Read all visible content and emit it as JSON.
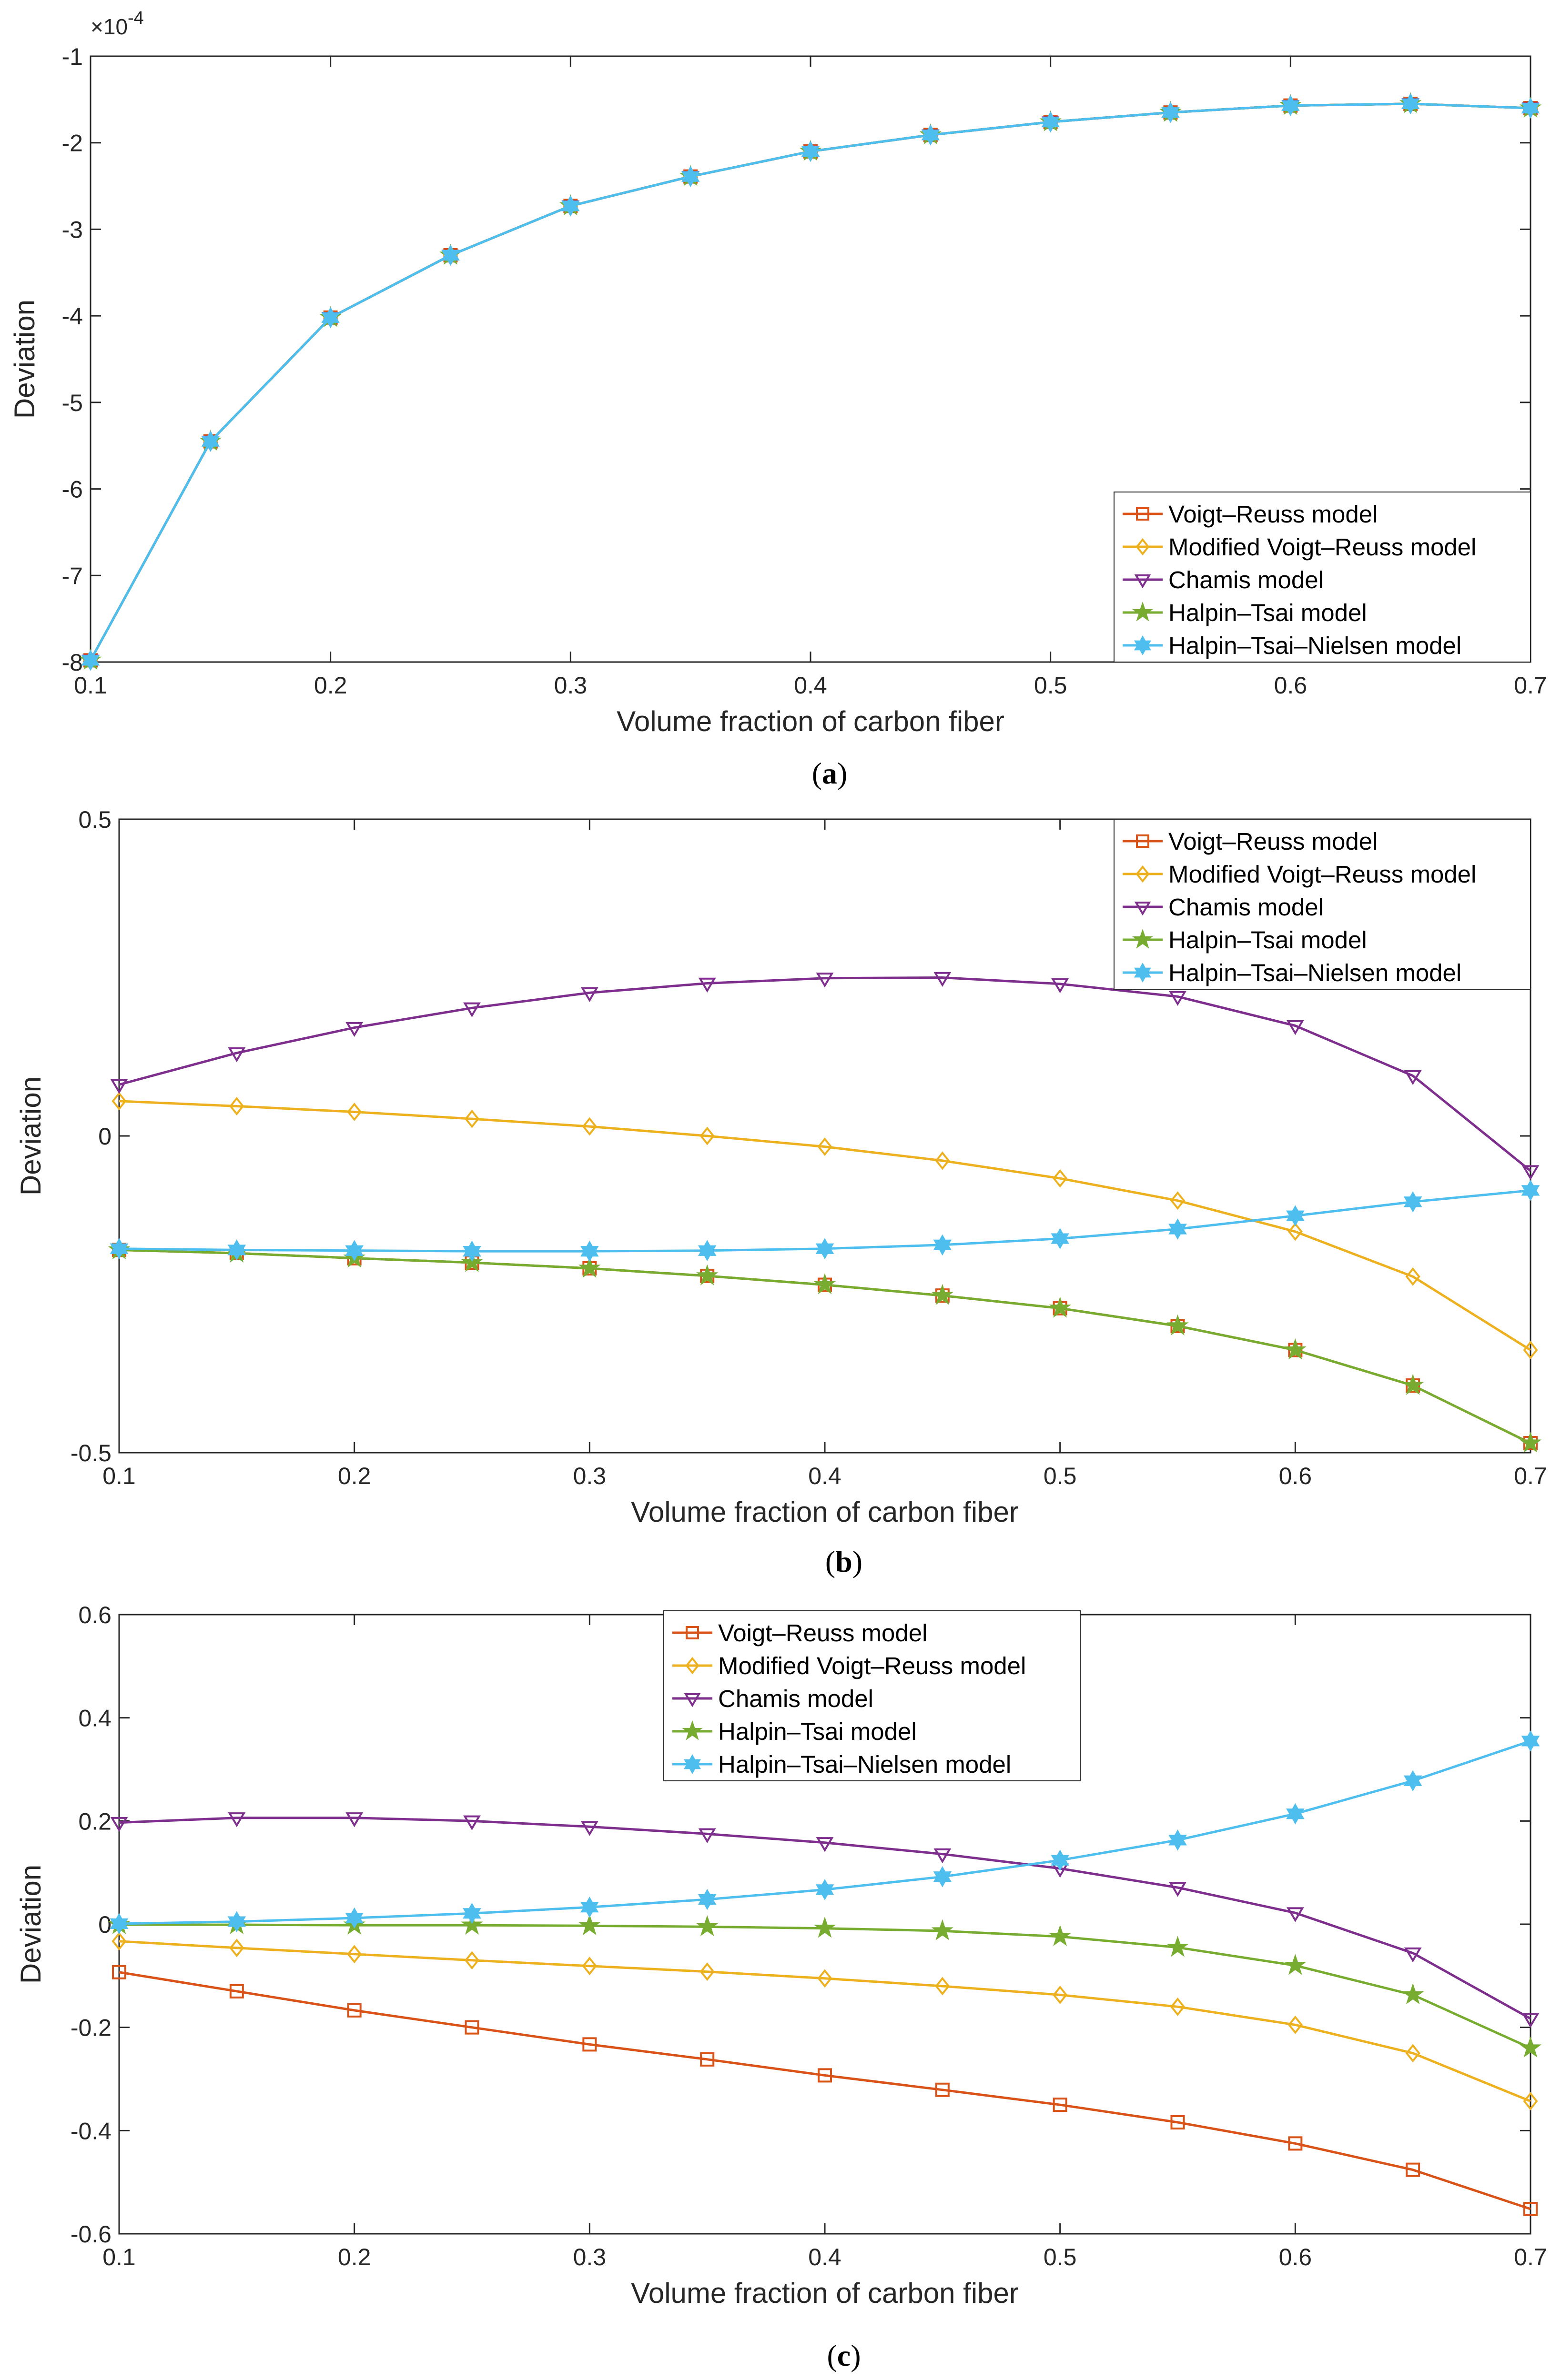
{
  "colors": {
    "voigt_reuss": "#D95319",
    "modified_voigt_reuss": "#EDB120",
    "chamis": "#7E2F8E",
    "halpin_tsai": "#77AC30",
    "halpin_tsai_nielsen": "#4DBEEE",
    "axis": "#262626"
  },
  "chart_data": [
    {
      "type": "line",
      "panel_caption": {
        "open": "(",
        "letter": "a",
        "close": ")"
      },
      "title": "",
      "xlabel": "Volume fraction of carbon fiber",
      "ylabel": "Deviation",
      "exponent_label": {
        "times": "×10",
        "power": "-4"
      },
      "xlim": [
        0.1,
        0.7
      ],
      "ylim": [
        -8,
        -1
      ],
      "xticks": [
        0.1,
        0.2,
        0.3,
        0.4,
        0.5,
        0.6,
        0.7
      ],
      "xtick_labels": [
        "0.1",
        "0.2",
        "0.3",
        "0.4",
        "0.5",
        "0.6",
        "0.7"
      ],
      "yticks": [
        -8,
        -7,
        -6,
        -5,
        -4,
        -3,
        -2,
        -1
      ],
      "ytick_labels": [
        "-8",
        "-7",
        "-6",
        "-5",
        "-4",
        "-3",
        "-2",
        "-1"
      ],
      "legend_position": "bottom-right",
      "x": [
        0.1,
        0.15,
        0.2,
        0.25,
        0.3,
        0.35,
        0.4,
        0.45,
        0.5,
        0.55,
        0.6,
        0.65,
        0.7
      ],
      "series": [
        {
          "name": "Voigt–Reuss model",
          "marker": "square",
          "color_key": "voigt_reuss",
          "values": [
            -7.98,
            -5.45,
            -4.02,
            -3.3,
            -2.73,
            -2.39,
            -2.1,
            -1.91,
            -1.76,
            -1.65,
            -1.57,
            -1.55,
            -1.6
          ]
        },
        {
          "name": "Modified Voigt–Reuss model",
          "marker": "diamond",
          "color_key": "modified_voigt_reuss",
          "values": [
            -7.98,
            -5.45,
            -4.02,
            -3.3,
            -2.73,
            -2.39,
            -2.1,
            -1.91,
            -1.76,
            -1.65,
            -1.57,
            -1.55,
            -1.6
          ]
        },
        {
          "name": "Chamis model",
          "marker": "triangle-down",
          "color_key": "chamis",
          "values": [
            -7.98,
            -5.45,
            -4.02,
            -3.3,
            -2.73,
            -2.39,
            -2.1,
            -1.91,
            -1.76,
            -1.65,
            -1.57,
            -1.55,
            -1.6
          ]
        },
        {
          "name": "Halpin–Tsai model",
          "marker": "star",
          "color_key": "halpin_tsai",
          "values": [
            -7.98,
            -5.45,
            -4.02,
            -3.3,
            -2.73,
            -2.39,
            -2.1,
            -1.91,
            -1.76,
            -1.65,
            -1.57,
            -1.55,
            -1.6
          ]
        },
        {
          "name": "Halpin–Tsai–Nielsen model",
          "marker": "hexagram",
          "color_key": "halpin_tsai_nielsen",
          "values": [
            -7.98,
            -5.45,
            -4.02,
            -3.3,
            -2.73,
            -2.39,
            -2.1,
            -1.91,
            -1.76,
            -1.65,
            -1.57,
            -1.55,
            -1.6
          ]
        }
      ]
    },
    {
      "type": "line",
      "panel_caption": {
        "open": "(",
        "letter": "b",
        "close": ")"
      },
      "title": "",
      "xlabel": "Volume fraction of carbon fiber",
      "ylabel": "Deviation",
      "xlim": [
        0.1,
        0.7
      ],
      "ylim": [
        -0.5,
        0.5
      ],
      "xticks": [
        0.1,
        0.2,
        0.3,
        0.4,
        0.5,
        0.6,
        0.7
      ],
      "xtick_labels": [
        "0.1",
        "0.2",
        "0.3",
        "0.4",
        "0.5",
        "0.6",
        "0.7"
      ],
      "yticks": [
        -0.5,
        0,
        0.5
      ],
      "ytick_labels": [
        "-0.5",
        "0",
        "0.5"
      ],
      "legend_position": "top-right",
      "x": [
        0.1,
        0.15,
        0.2,
        0.25,
        0.3,
        0.35,
        0.4,
        0.45,
        0.5,
        0.55,
        0.6,
        0.65,
        0.7
      ],
      "series": [
        {
          "name": "Voigt–Reuss model",
          "marker": "square",
          "color_key": "voigt_reuss",
          "values": [
            -0.18,
            -0.185,
            -0.193,
            -0.2,
            -0.209,
            -0.221,
            -0.235,
            -0.252,
            -0.272,
            -0.3,
            -0.338,
            -0.394,
            -0.485
          ]
        },
        {
          "name": "Modified Voigt–Reuss model",
          "marker": "diamond",
          "color_key": "modified_voigt_reuss",
          "values": [
            0.055,
            0.047,
            0.038,
            0.027,
            0.015,
            0.0,
            -0.017,
            -0.039,
            -0.067,
            -0.102,
            -0.151,
            -0.222,
            -0.338
          ]
        },
        {
          "name": "Chamis model",
          "marker": "triangle-down",
          "color_key": "chamis",
          "values": [
            0.081,
            0.131,
            0.171,
            0.202,
            0.226,
            0.241,
            0.249,
            0.25,
            0.24,
            0.22,
            0.174,
            0.095,
            -0.055
          ]
        },
        {
          "name": "Halpin–Tsai model",
          "marker": "star",
          "color_key": "halpin_tsai",
          "values": [
            -0.18,
            -0.185,
            -0.193,
            -0.2,
            -0.209,
            -0.221,
            -0.235,
            -0.252,
            -0.272,
            -0.3,
            -0.338,
            -0.394,
            -0.485
          ]
        },
        {
          "name": "Halpin–Tsai–Nielsen model",
          "marker": "hexagram",
          "color_key": "halpin_tsai_nielsen",
          "values": [
            -0.178,
            -0.18,
            -0.181,
            -0.182,
            -0.182,
            -0.181,
            -0.178,
            -0.172,
            -0.162,
            -0.147,
            -0.126,
            -0.104,
            -0.086
          ]
        }
      ]
    },
    {
      "type": "line",
      "panel_caption": {
        "open": "(",
        "letter": "c",
        "close": ")"
      },
      "title": "",
      "xlabel": "Volume fraction of carbon fiber",
      "ylabel": "Deviation",
      "xlim": [
        0.1,
        0.7
      ],
      "ylim": [
        -0.6,
        0.6
      ],
      "xticks": [
        0.1,
        0.2,
        0.3,
        0.4,
        0.5,
        0.6,
        0.7
      ],
      "xtick_labels": [
        "0.1",
        "0.2",
        "0.3",
        "0.4",
        "0.5",
        "0.6",
        "0.7"
      ],
      "yticks": [
        -0.6,
        -0.4,
        -0.2,
        0,
        0.2,
        0.4,
        0.6
      ],
      "ytick_labels": [
        "-0.6",
        "-0.4",
        "-0.2",
        "0",
        "0.2",
        "0.4",
        "0.6"
      ],
      "legend_position": "top-center",
      "x": [
        0.1,
        0.15,
        0.2,
        0.25,
        0.3,
        0.35,
        0.4,
        0.45,
        0.5,
        0.55,
        0.6,
        0.65,
        0.7
      ],
      "series": [
        {
          "name": "Voigt–Reuss model",
          "marker": "square",
          "color_key": "voigt_reuss",
          "values": [
            -0.093,
            -0.13,
            -0.167,
            -0.2,
            -0.233,
            -0.262,
            -0.293,
            -0.321,
            -0.35,
            -0.384,
            -0.425,
            -0.476,
            -0.552
          ]
        },
        {
          "name": "Modified Voigt–Reuss model",
          "marker": "diamond",
          "color_key": "modified_voigt_reuss",
          "values": [
            -0.033,
            -0.046,
            -0.058,
            -0.07,
            -0.081,
            -0.092,
            -0.105,
            -0.12,
            -0.137,
            -0.16,
            -0.195,
            -0.25,
            -0.343
          ]
        },
        {
          "name": "Chamis model",
          "marker": "triangle-down",
          "color_key": "chamis",
          "values": [
            0.197,
            0.206,
            0.206,
            0.2,
            0.189,
            0.175,
            0.158,
            0.136,
            0.108,
            0.071,
            0.022,
            -0.056,
            -0.183
          ]
        },
        {
          "name": "Halpin–Tsai model",
          "marker": "star",
          "color_key": "halpin_tsai",
          "values": [
            -0.001,
            -0.001,
            -0.002,
            -0.002,
            -0.003,
            -0.005,
            -0.008,
            -0.013,
            -0.024,
            -0.045,
            -0.08,
            -0.137,
            -0.24
          ]
        },
        {
          "name": "Halpin–Tsai–Nielsen model",
          "marker": "hexagram",
          "color_key": "halpin_tsai_nielsen",
          "values": [
            0.001,
            0.005,
            0.012,
            0.021,
            0.033,
            0.048,
            0.067,
            0.092,
            0.124,
            0.163,
            0.214,
            0.278,
            0.355
          ]
        }
      ]
    }
  ]
}
